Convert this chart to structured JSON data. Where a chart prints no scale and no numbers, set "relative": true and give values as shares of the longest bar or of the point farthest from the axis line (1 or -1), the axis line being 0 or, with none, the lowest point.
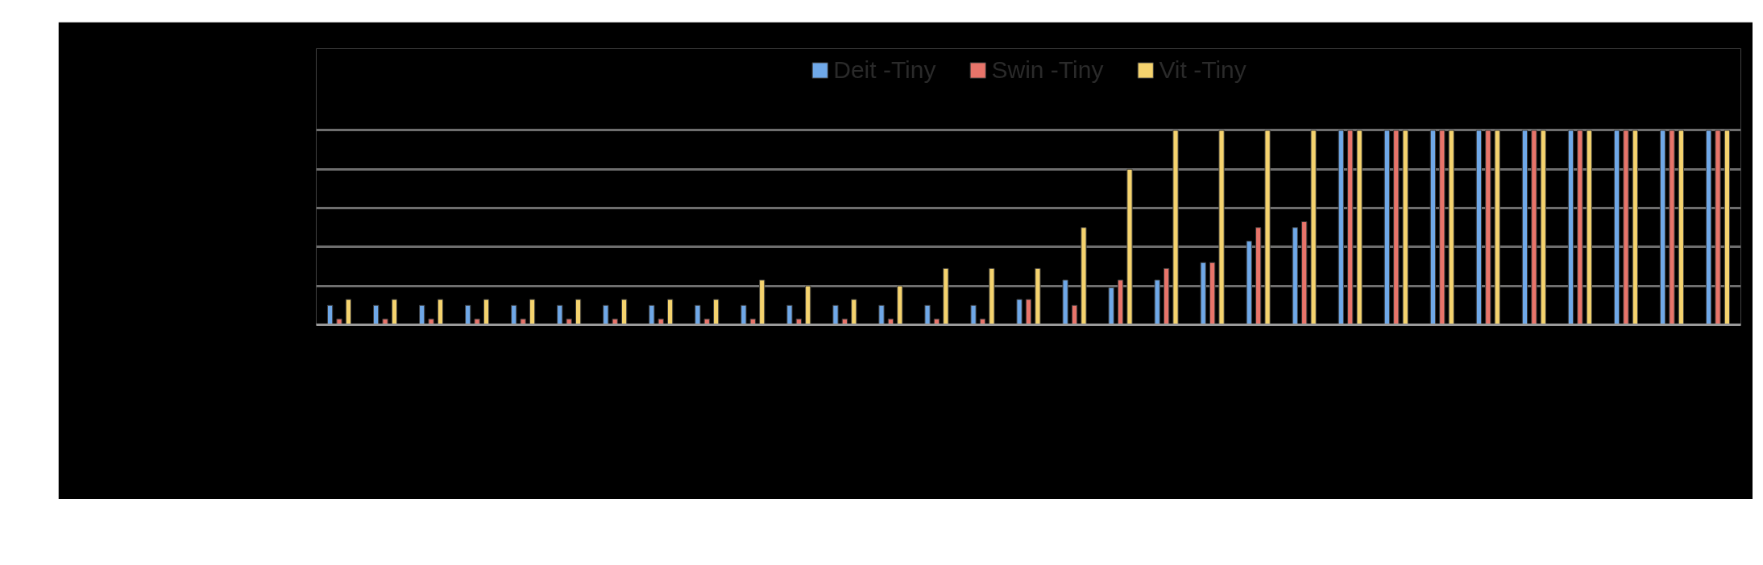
{
  "chart_data": {
    "type": "bar",
    "relative": true,
    "grid": "y",
    "legend": "top",
    "categories": [
      null,
      null,
      null,
      null,
      null,
      null,
      null,
      null,
      null,
      null,
      null,
      null,
      null,
      null,
      null,
      null,
      null,
      null,
      null,
      null,
      null,
      null,
      null,
      null,
      null,
      null,
      null,
      null,
      null,
      null,
      null
    ],
    "series": [
      {
        "name": "Deit -Tiny",
        "color": "#6fa8e8",
        "values": [
          0.1,
          0.1,
          0.1,
          0.1,
          0.1,
          0.1,
          0.1,
          0.1,
          0.1,
          0.1,
          0.1,
          0.1,
          0.1,
          0.1,
          0.1,
          0.13,
          0.23,
          0.19,
          0.23,
          0.32,
          0.43,
          0.5,
          1,
          1,
          1,
          1,
          1,
          1,
          1,
          1,
          1
        ]
      },
      {
        "name": "Swin -Tiny",
        "color": "#e8746a",
        "values": [
          0.03,
          0.03,
          0.03,
          0.03,
          0.03,
          0.03,
          0.03,
          0.03,
          0.03,
          0.03,
          0.03,
          0.03,
          0.03,
          0.03,
          0.03,
          0.13,
          0.1,
          0.23,
          0.29,
          0.32,
          0.5,
          0.53,
          1,
          1,
          1,
          1,
          1,
          1,
          1,
          1,
          1
        ]
      },
      {
        "name": "Vit -Tiny",
        "color": "#f5d36e",
        "values": [
          0.13,
          0.13,
          0.13,
          0.13,
          0.13,
          0.13,
          0.13,
          0.13,
          0.13,
          0.23,
          0.2,
          0.13,
          0.2,
          0.29,
          0.29,
          0.29,
          0.5,
          0.8,
          1,
          1,
          1,
          1,
          1,
          1,
          1,
          1,
          1,
          1,
          1,
          1,
          1
        ]
      }
    ]
  }
}
